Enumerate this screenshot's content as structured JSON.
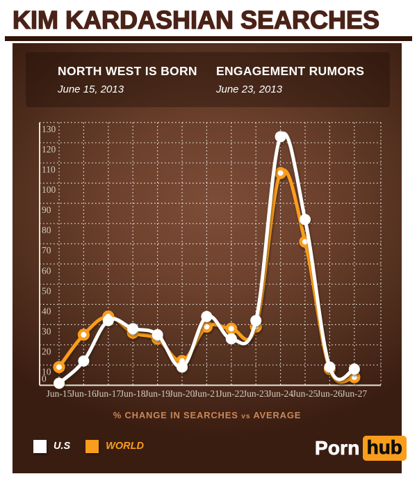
{
  "page": {
    "title": "KIM KARDASHIAN SEARCHES"
  },
  "annotations": [
    {
      "heading": "NORTH WEST IS BORN",
      "date": "June 15, 2013"
    },
    {
      "heading": "ENGAGEMENT RUMORS",
      "date": "June 23, 2013"
    }
  ],
  "chart_data": {
    "type": "line",
    "title": "KIM KARDASHIAN SEARCHES",
    "categories": [
      "Jun-15",
      "Jun-16",
      "Jun-17",
      "Jun-18",
      "Jun-19",
      "Jun-20",
      "Jun-21",
      "Jun-22",
      "Jun-23",
      "Jun-24",
      "Jun-25",
      "Jun-26",
      "Jun-27"
    ],
    "series": [
      {
        "name": "WORLD",
        "color": "#f99d1c",
        "values": [
          9,
          25,
          34,
          26,
          23,
          12,
          29,
          28,
          29,
          105,
          71,
          8,
          4
        ]
      },
      {
        "name": "U.S",
        "color": "#ffffff",
        "values": [
          1,
          12,
          32,
          28,
          25,
          9,
          34,
          23,
          32,
          123,
          82,
          9,
          8
        ]
      }
    ],
    "xlabel": "% CHANGE IN SEARCHES vs AVERAGE",
    "ylabel": "",
    "ylim": [
      0,
      130
    ],
    "ytick_step": 10,
    "grid": "dotted",
    "legend_position": "bottom-left",
    "annotations": [
      "NORTH WEST IS BORN June 15, 2013",
      "ENGAGEMENT RUMORS June 23, 2013"
    ]
  },
  "caption": {
    "part1": "% CHANGE IN SEARCHES",
    "vs": "vs",
    "part2": "AVERAGE"
  },
  "legend": [
    {
      "label": "U.S",
      "swatch": "#ffffff"
    },
    {
      "label": "WORLD",
      "swatch": "#f99d1c"
    }
  ],
  "logo": {
    "part1": "Porn",
    "part2": "hub"
  },
  "colors": {
    "accent_orange": "#f99d1c",
    "title_brown": "#4a2217",
    "panel_center": "#7d4d37",
    "panel_edge": "#3a1d11",
    "caption_text": "#c9875a",
    "tick_text": "#d3cbc0",
    "gridline": "rgba(255,255,255,0.85)"
  }
}
